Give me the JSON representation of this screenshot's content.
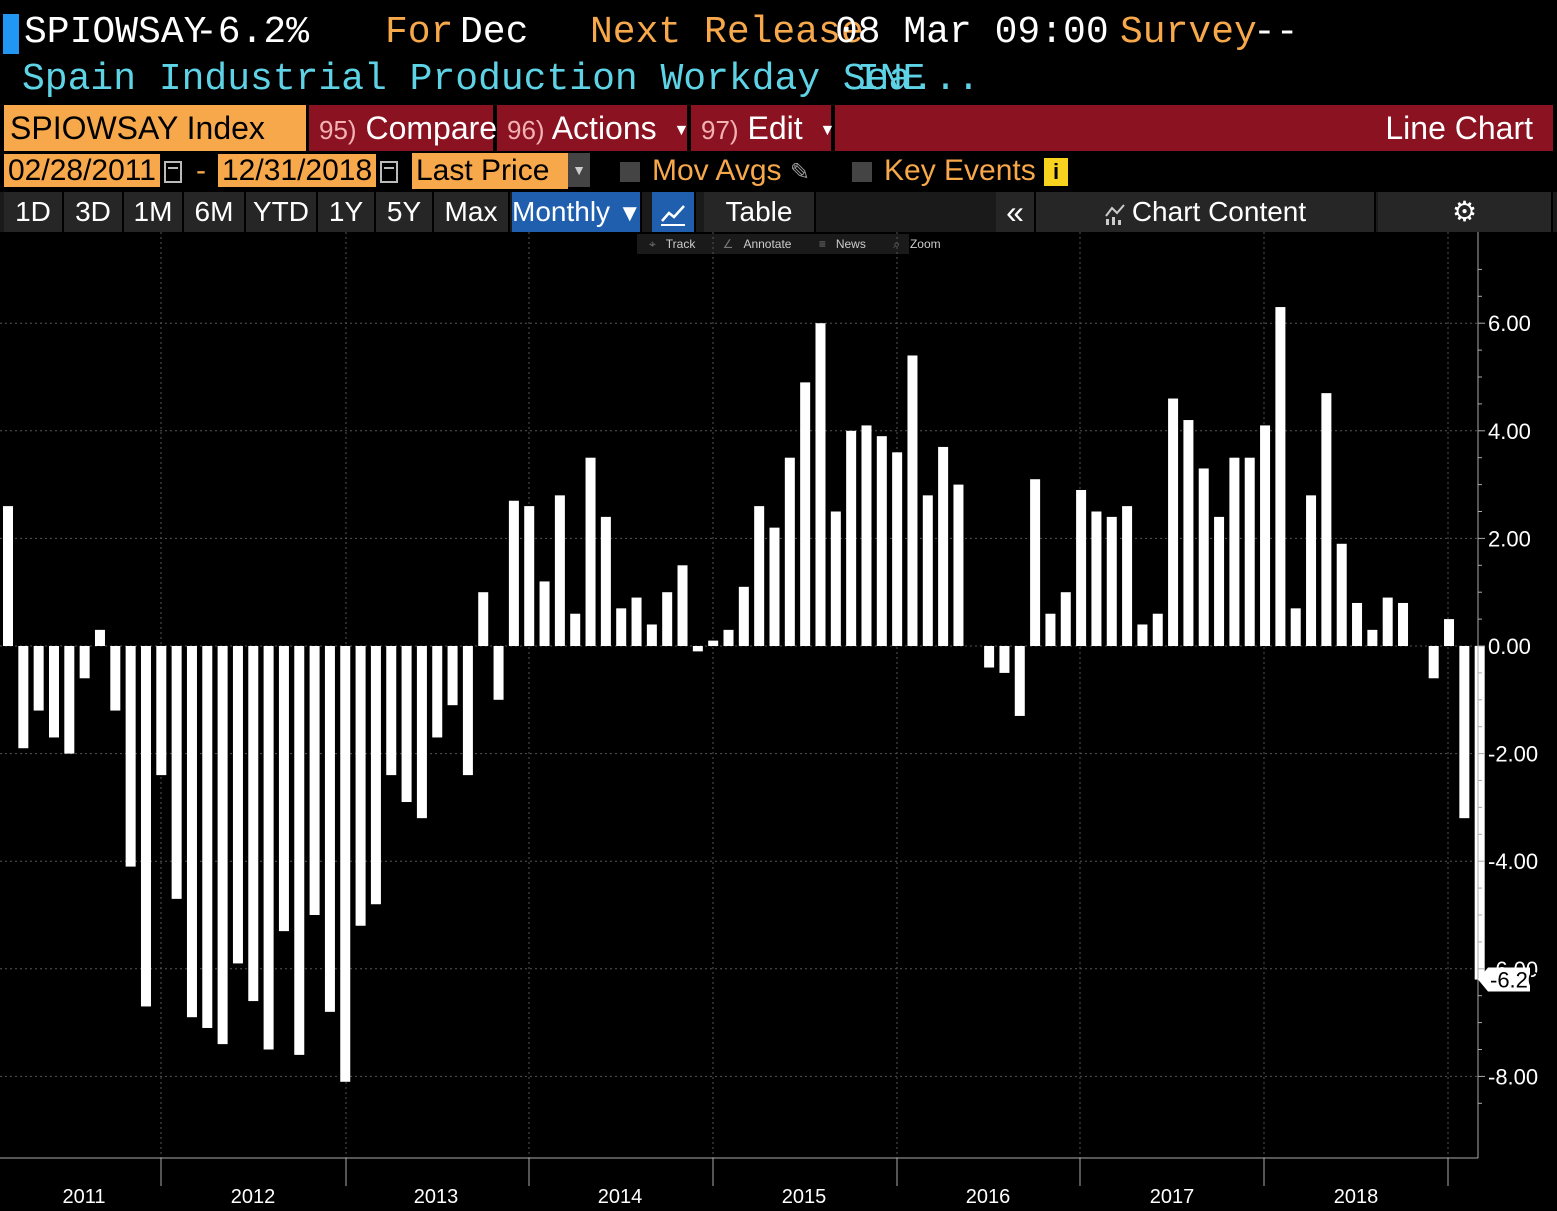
{
  "header": {
    "ticker": "SPIOWSAY",
    "change": "-6.2%",
    "for_label": "For",
    "for_value": "Dec",
    "next_release_label": "Next Release",
    "next_release_value": "08 Mar 09:00",
    "survey_label": "Survey",
    "survey_value": "--",
    "description": "Spain Industrial Production Workday Sea...",
    "source": "INE"
  },
  "toolbar": {
    "ticker_index": "SPIOWSAY Index",
    "compare_num": "95)",
    "compare_label": "Compare",
    "actions_num": "96)",
    "actions_label": "Actions",
    "edit_num": "97)",
    "edit_label": "Edit",
    "chart_type": "Line Chart"
  },
  "daterange": {
    "start": "02/28/2011",
    "separator": "-",
    "end": "12/31/2018",
    "field": "Last Price",
    "mov_avgs": "Mov Avgs",
    "key_events": "Key Events",
    "info_icon": "i"
  },
  "periods": {
    "items": [
      "1D",
      "3D",
      "1M",
      "6M",
      "YTD",
      "1Y",
      "5Y",
      "Max"
    ],
    "frequency": "Monthly",
    "table": "Table",
    "collapse": "«",
    "chart_content": "Chart Content"
  },
  "tools": {
    "track": "Track",
    "annotate": "Annotate",
    "news": "News",
    "zoom": "Zoom"
  },
  "colors": {
    "background": "#000000",
    "bar": "#ffffff",
    "accent_orange": "#f7a84a",
    "accent_cyan": "#5fd3e6",
    "toolbar_red": "#8b1220",
    "selected_blue": "#1f5fae"
  },
  "chart_data": {
    "type": "bar",
    "ylim": [
      -9.0,
      7.6
    ],
    "yticks": [
      6,
      4,
      2,
      0,
      -2,
      -4,
      -6,
      -8
    ],
    "ytick_labels": [
      "6.00",
      "4.00",
      "2.00",
      "0.00",
      "-2.00",
      "-4.00",
      "-6.00",
      "-8.00"
    ],
    "last_value_label": "-6.20",
    "year_labels": [
      "2011",
      "2012",
      "2013",
      "2014",
      "2015",
      "2016",
      "2017",
      "2018"
    ],
    "grid": true,
    "values": [
      2.6,
      -1.9,
      -1.2,
      -1.7,
      -2.0,
      -0.6,
      0.3,
      -1.2,
      -4.1,
      -6.7,
      -2.4,
      -4.7,
      -6.9,
      -7.1,
      -7.4,
      -5.9,
      -6.6,
      -7.5,
      -5.3,
      -7.6,
      -5.0,
      -6.8,
      -8.1,
      -5.2,
      -4.8,
      -2.4,
      -2.9,
      -3.2,
      -1.7,
      -1.1,
      -2.4,
      1.0,
      -1.0,
      2.7,
      2.6,
      1.2,
      2.8,
      0.6,
      3.5,
      2.4,
      0.7,
      0.9,
      0.4,
      1.0,
      1.5,
      -0.1,
      0.1,
      0.3,
      1.1,
      2.6,
      2.2,
      3.5,
      4.9,
      6.0,
      2.5,
      4.0,
      4.1,
      3.9,
      3.6,
      5.4,
      2.8,
      3.7,
      3.0,
      0.0,
      -0.4,
      -0.5,
      -1.3,
      3.1,
      0.6,
      1.0,
      2.9,
      2.5,
      2.4,
      2.6,
      0.4,
      0.6,
      4.6,
      4.2,
      3.3,
      2.4,
      3.5,
      3.5,
      4.1,
      6.3,
      0.7,
      2.8,
      4.7,
      1.9,
      0.8,
      0.3,
      0.9,
      0.8,
      0.0,
      -0.6,
      0.5,
      -3.2,
      -6.2
    ]
  }
}
